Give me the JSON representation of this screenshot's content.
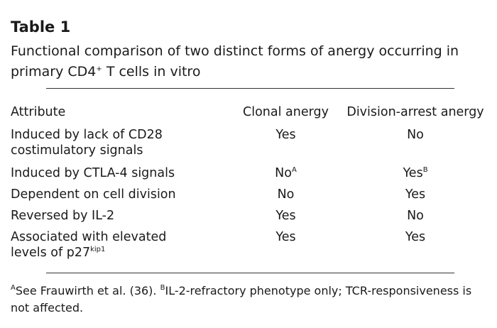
{
  "title": "Table 1",
  "caption": {
    "text": "Functional comparison of two distinct forms of anergy occurring in primary CD4",
    "sup": "+",
    "after": " T cells in vitro"
  },
  "table": {
    "header": [
      "Attribute",
      "Clonal anergy",
      "Division-arrest anergy"
    ],
    "rows": [
      [
        {
          "text": "Induced by lack of CD28 costimulatory signals"
        },
        {
          "text": "Yes"
        },
        {
          "text": "No"
        }
      ],
      [
        {
          "text": "Induced by CTLA-4 signals"
        },
        {
          "text": "No",
          "sup": "A"
        },
        {
          "text": "Yes",
          "sup": "B"
        }
      ],
      [
        {
          "text": "Dependent on cell division"
        },
        {
          "text": "No"
        },
        {
          "text": "Yes"
        }
      ],
      [
        {
          "text": "Reversed by IL-2"
        },
        {
          "text": "Yes"
        },
        {
          "text": "No"
        }
      ],
      [
        {
          "text": "Associated with elevated levels of p27",
          "sup": "kip1"
        },
        {
          "text": "Yes"
        },
        {
          "text": "Yes"
        }
      ]
    ]
  },
  "footnotes": [
    {
      "mark": "A",
      "text": "See Frauwirth et al. (36). "
    },
    {
      "mark": "B",
      "text": "IL-2-refractory phenotype only; TCR-responsiveness is not affected."
    }
  ]
}
